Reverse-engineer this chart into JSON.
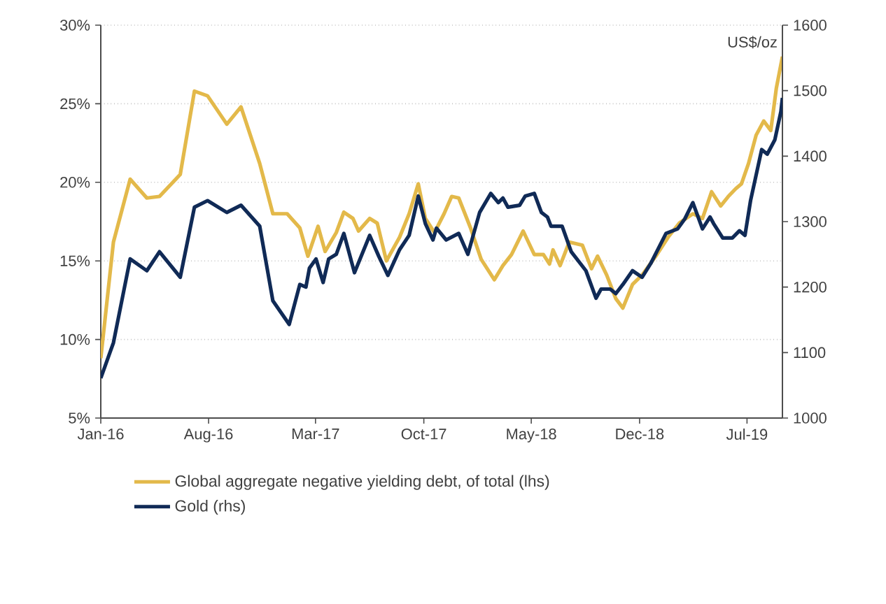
{
  "chart_data": {
    "type": "line",
    "xlim": [
      "2016-01-01",
      "2019-09-09"
    ],
    "xticks": [
      {
        "value": "2016-01",
        "label": "Jan-16"
      },
      {
        "value": "2016-08",
        "label": "Aug-16"
      },
      {
        "value": "2017-03",
        "label": "Mar-17"
      },
      {
        "value": "2017-10",
        "label": "Oct-17"
      },
      {
        "value": "2018-05",
        "label": "May-18"
      },
      {
        "value": "2018-12",
        "label": "Dec-18"
      },
      {
        "value": "2019-07",
        "label": "Jul-19"
      }
    ],
    "ylim": [
      5,
      30
    ],
    "yticks": [
      {
        "value": 5,
        "label": "5%"
      },
      {
        "value": 10,
        "label": "10%"
      },
      {
        "value": 15,
        "label": "15%"
      },
      {
        "value": 20,
        "label": "20%"
      },
      {
        "value": 25,
        "label": "25%"
      },
      {
        "value": 30,
        "label": "30%"
      }
    ],
    "y2lim": [
      1000,
      1600
    ],
    "y2ticks": [
      1000,
      1100,
      1200,
      1300,
      1400,
      1500,
      1600
    ],
    "y2label": "US$/oz",
    "grid": "y",
    "legend": "bottom",
    "series": [
      {
        "name": "Global aggregate negative yielding debt, of total (lhs)",
        "color": "#e3b94a",
        "x": [
          "2016-01-01",
          "2016-01-26",
          "2016-02-28",
          "2016-04-01",
          "2016-04-26",
          "2016-06-06",
          "2016-07-04",
          "2016-07-30",
          "2016-09-06",
          "2016-10-04",
          "2016-11-10",
          "2016-12-06",
          "2017-01-04",
          "2017-01-29",
          "2017-02-14",
          "2017-03-06",
          "2017-03-20",
          "2017-04-11",
          "2017-04-26",
          "2017-05-14",
          "2017-05-25",
          "2017-06-16",
          "2017-07-01",
          "2017-07-19",
          "2017-08-14",
          "2017-09-02",
          "2017-09-20",
          "2017-10-04",
          "2017-10-22",
          "2017-11-10",
          "2017-11-25",
          "2017-12-09",
          "2018-01-01",
          "2018-01-22",
          "2018-02-17",
          "2018-03-06",
          "2018-03-23",
          "2018-04-15",
          "2018-05-07",
          "2018-05-25",
          "2018-06-06",
          "2018-06-13",
          "2018-06-27",
          "2018-07-15",
          "2018-08-10",
          "2018-08-28",
          "2018-09-09",
          "2018-09-27",
          "2018-10-15",
          "2018-10-29",
          "2018-11-17",
          "2018-12-06",
          "2019-01-04",
          "2019-01-26",
          "2019-02-17",
          "2019-03-16",
          "2019-04-04",
          "2019-04-22",
          "2019-05-10",
          "2019-05-25",
          "2019-06-09",
          "2019-06-20",
          "2019-07-04",
          "2019-07-19",
          "2019-08-03",
          "2019-08-17",
          "2019-08-28",
          "2019-09-09"
        ],
        "values": [
          8.8,
          16.2,
          20.2,
          19.0,
          19.1,
          20.5,
          25.8,
          25.5,
          23.7,
          24.8,
          21.2,
          18.0,
          18.0,
          17.1,
          15.3,
          17.2,
          15.6,
          16.8,
          18.1,
          17.7,
          16.9,
          17.7,
          17.4,
          15.0,
          16.5,
          18.0,
          19.9,
          17.7,
          16.8,
          18.0,
          19.1,
          19.0,
          17.1,
          15.1,
          13.8,
          14.7,
          15.4,
          16.9,
          15.4,
          15.4,
          14.8,
          15.7,
          14.7,
          16.2,
          16.0,
          14.5,
          15.3,
          14.1,
          12.6,
          12.0,
          13.5,
          14.1,
          15.4,
          16.5,
          17.4,
          18.0,
          17.7,
          19.4,
          18.5,
          19.1,
          19.6,
          19.9,
          21.2,
          23.0,
          23.9,
          23.3,
          26.0,
          28.0
        ]
      },
      {
        "name": "Gold (rhs)",
        "color": "#102a56",
        "axis": "y2",
        "x": [
          "2016-01-01",
          "2016-01-26",
          "2016-02-28",
          "2016-04-01",
          "2016-04-26",
          "2016-06-06",
          "2016-07-04",
          "2016-07-30",
          "2016-09-06",
          "2016-10-04",
          "2016-11-10",
          "2016-12-06",
          "2017-01-08",
          "2017-01-29",
          "2017-02-10",
          "2017-02-17",
          "2017-03-02",
          "2017-03-16",
          "2017-03-27",
          "2017-04-11",
          "2017-04-26",
          "2017-05-17",
          "2017-06-16",
          "2017-07-04",
          "2017-07-22",
          "2017-08-14",
          "2017-09-02",
          "2017-09-20",
          "2017-10-04",
          "2017-10-19",
          "2017-10-26",
          "2017-11-14",
          "2017-12-09",
          "2017-12-27",
          "2018-01-19",
          "2018-02-10",
          "2018-02-25",
          "2018-03-06",
          "2018-03-16",
          "2018-04-08",
          "2018-04-19",
          "2018-05-07",
          "2018-05-21",
          "2018-06-02",
          "2018-06-09",
          "2018-07-01",
          "2018-07-19",
          "2018-08-17",
          "2018-09-06",
          "2018-09-16",
          "2018-10-04",
          "2018-10-15",
          "2018-10-29",
          "2018-11-17",
          "2018-12-06",
          "2018-12-23",
          "2019-01-22",
          "2019-02-14",
          "2019-02-28",
          "2019-03-16",
          "2019-04-04",
          "2019-04-19",
          "2019-04-26",
          "2019-05-14",
          "2019-06-02",
          "2019-06-16",
          "2019-06-27",
          "2019-07-08",
          "2019-07-30",
          "2019-08-10",
          "2019-08-25",
          "2019-09-06",
          "2019-09-09"
        ],
        "values": [
          1061,
          1115,
          1243,
          1225,
          1254,
          1215,
          1322,
          1332,
          1314,
          1325,
          1293,
          1179,
          1143,
          1204,
          1200,
          1229,
          1243,
          1207,
          1243,
          1250,
          1282,
          1222,
          1279,
          1247,
          1218,
          1257,
          1279,
          1339,
          1297,
          1272,
          1290,
          1272,
          1282,
          1250,
          1314,
          1343,
          1329,
          1336,
          1322,
          1325,
          1339,
          1343,
          1314,
          1307,
          1293,
          1293,
          1254,
          1225,
          1183,
          1197,
          1197,
          1190,
          1204,
          1225,
          1215,
          1236,
          1282,
          1289,
          1304,
          1329,
          1289,
          1307,
          1297,
          1275,
          1275,
          1286,
          1279,
          1332,
          1410,
          1403,
          1425,
          1468,
          1489
        ]
      }
    ]
  }
}
